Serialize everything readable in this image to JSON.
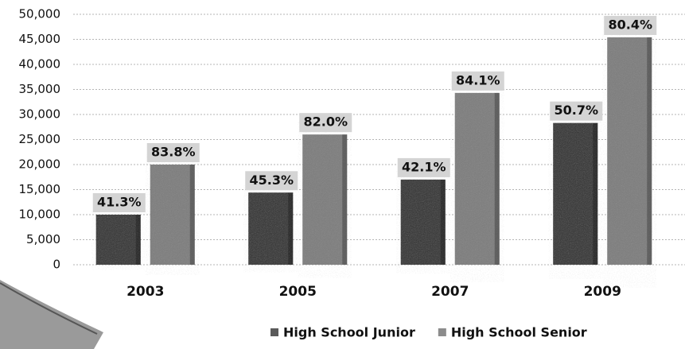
{
  "chart_data": {
    "type": "bar",
    "categories": [
      "2003",
      "2005",
      "2007",
      "2009"
    ],
    "series": [
      {
        "name": "High School Junior",
        "color": "#5a5a5a",
        "values": [
          10000,
          14400,
          17000,
          28300
        ],
        "annotations": [
          "41.3%",
          "45.3%",
          "42.1%",
          "50.7%"
        ]
      },
      {
        "name": "High School Senior",
        "color": "#8c8c8c",
        "values": [
          20000,
          26000,
          34300,
          45400
        ],
        "annotations": [
          "83.8%",
          "82.0%",
          "84.1%",
          "80.4%"
        ]
      }
    ],
    "ylim": [
      0,
      50000
    ],
    "yticks": [
      0,
      {
        "value": 5000,
        "label": "5,000"
      },
      {
        "value": 10000,
        "label": "10,000"
      },
      {
        "value": 15000,
        "label": "15,000"
      },
      {
        "value": 20000,
        "label": "20,000"
      },
      {
        "value": 25000,
        "label": "25,000"
      },
      {
        "value": 30000,
        "label": "30,000"
      },
      {
        "value": 35000,
        "label": "35,000"
      },
      {
        "value": 40000,
        "label": "40,000"
      },
      {
        "value": 45000,
        "label": "45,000"
      },
      {
        "value": 50000,
        "label": "50,000"
      }
    ],
    "grid": true,
    "legend": "bottom"
  }
}
